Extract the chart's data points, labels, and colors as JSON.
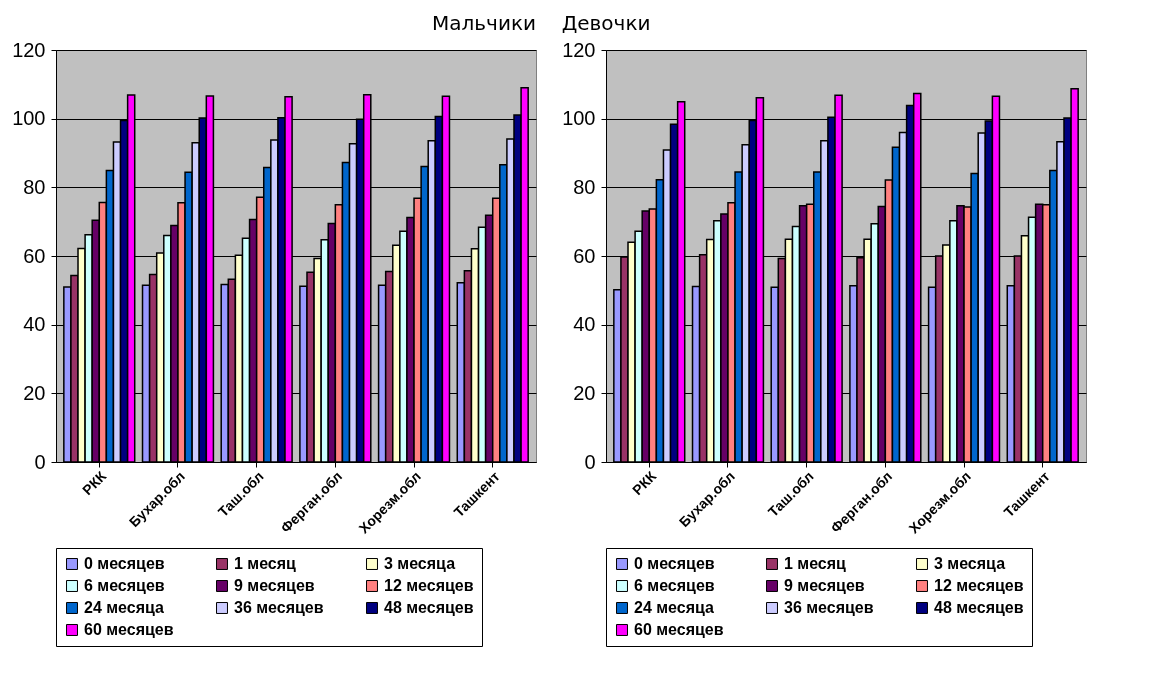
{
  "chart_data": [
    {
      "type": "bar",
      "title": "Мальчики",
      "categories": [
        "РКК",
        "Бухар.обл",
        "Таш.обл",
        "Ферган.обл",
        "Хорезм.обл",
        "Ташкент"
      ],
      "ylim": [
        0,
        120
      ],
      "yticks": [
        0,
        20,
        40,
        60,
        80,
        100,
        120
      ],
      "grid": "y",
      "legend": "bottom",
      "series": [
        {
          "name": "0 месяцев",
          "color": "#9999ff",
          "values": [
            51.0,
            51.5,
            51.7,
            51.2,
            51.5,
            52.2
          ]
        },
        {
          "name": "1 месяц",
          "color": "#993366",
          "values": [
            54.3,
            54.6,
            53.2,
            55.3,
            55.5,
            55.7
          ]
        },
        {
          "name": "3 месяца",
          "color": "#ffffcc",
          "values": [
            62.2,
            60.9,
            60.2,
            59.3,
            63.1,
            62.1
          ]
        },
        {
          "name": "6 месяцев",
          "color": "#ccffff",
          "values": [
            66.2,
            66.0,
            65.2,
            64.7,
            67.2,
            68.4
          ]
        },
        {
          "name": "9 месяцев",
          "color": "#660066",
          "values": [
            70.4,
            68.9,
            70.6,
            69.5,
            71.2,
            71.9
          ]
        },
        {
          "name": "12 месяцев",
          "color": "#ff8080",
          "values": [
            75.6,
            75.5,
            77.1,
            74.9,
            76.8,
            76.8
          ]
        },
        {
          "name": "24 месяца",
          "color": "#0066cc",
          "values": [
            84.9,
            84.4,
            85.8,
            87.2,
            86.1,
            86.6
          ]
        },
        {
          "name": "36 месяцев",
          "color": "#ccccff",
          "values": [
            93.2,
            93.0,
            93.8,
            92.7,
            93.6,
            94.1
          ]
        },
        {
          "name": "48 месяцев",
          "color": "#000080",
          "values": [
            99.5,
            100.2,
            100.3,
            99.8,
            100.6,
            101.1
          ]
        },
        {
          "name": "60 месяцев",
          "color": "#ff00ff",
          "values": [
            106.9,
            106.6,
            106.4,
            107.0,
            106.5,
            109.0
          ]
        }
      ]
    },
    {
      "type": "bar",
      "title": "Девочки",
      "categories": [
        "РКК",
        "Бухар.обл",
        "Таш.обл",
        "Ферган.обл",
        "Хорезм.обл",
        "Ташкент"
      ],
      "ylim": [
        0,
        120
      ],
      "yticks": [
        0,
        20,
        40,
        60,
        80,
        100,
        120
      ],
      "grid": "y",
      "legend": "bottom",
      "series": [
        {
          "name": "0 месяцев",
          "color": "#9999ff",
          "values": [
            50.2,
            51.1,
            50.9,
            51.3,
            50.9,
            51.3
          ]
        },
        {
          "name": "1 месяц",
          "color": "#993366",
          "values": [
            59.7,
            60.4,
            59.3,
            59.5,
            60.0,
            60.0
          ]
        },
        {
          "name": "3 месяца",
          "color": "#ffffcc",
          "values": [
            64.0,
            64.8,
            64.9,
            64.9,
            63.2,
            65.9
          ]
        },
        {
          "name": "6 месяцев",
          "color": "#ccffff",
          "values": [
            67.2,
            70.3,
            68.6,
            69.4,
            70.3,
            71.3
          ]
        },
        {
          "name": "9 месяцев",
          "color": "#660066",
          "values": [
            73.1,
            72.2,
            74.6,
            74.4,
            74.6,
            75.1
          ]
        },
        {
          "name": "12 месяцев",
          "color": "#ff8080",
          "values": [
            73.7,
            75.5,
            75.1,
            82.1,
            74.3,
            74.9
          ]
        },
        {
          "name": "24 месяца",
          "color": "#0066cc",
          "values": [
            82.2,
            84.5,
            84.5,
            91.7,
            84.0,
            84.9
          ]
        },
        {
          "name": "36 месяцев",
          "color": "#ccccff",
          "values": [
            90.9,
            92.4,
            93.6,
            96.0,
            95.8,
            93.3
          ]
        },
        {
          "name": "48 месяцев",
          "color": "#000080",
          "values": [
            98.4,
            99.5,
            100.4,
            103.8,
            99.3,
            100.2
          ]
        },
        {
          "name": "60 месяцев",
          "color": "#ff00ff",
          "values": [
            104.9,
            106.1,
            106.8,
            107.3,
            106.5,
            108.7
          ]
        }
      ]
    }
  ]
}
